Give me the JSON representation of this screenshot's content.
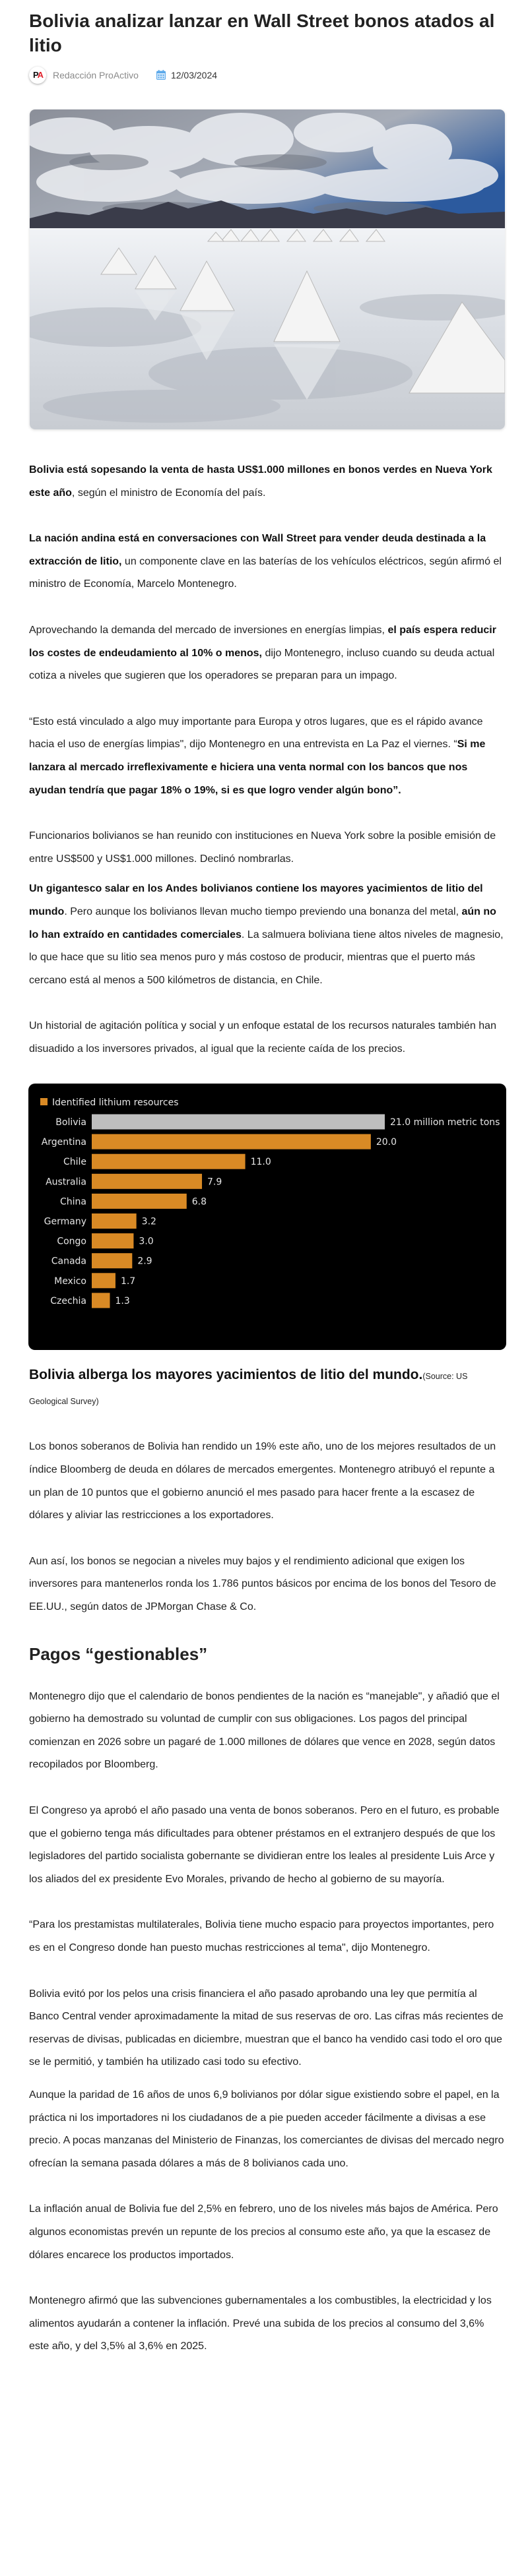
{
  "article": {
    "title": "Bolivia analizar lanzar en Wall Street bonos atados al litio",
    "author": "Redacción ProActivo",
    "author_logo": "PA",
    "date": "12/03/2024",
    "icons": {
      "author": "proactivo-logo",
      "date": "calendar-icon"
    },
    "hero_image": "salt-flat-photo"
  },
  "paragraphs_before_chart": [
    {
      "segments": [
        {
          "t": "Bolivia está sopesando la venta de hasta US$1.000 millones en bonos verdes en Nueva York este año",
          "b": true
        },
        {
          "t": ", según el ministro de Economía del país."
        }
      ]
    },
    {
      "segments": [
        {
          "t": "La nación andina está en conversaciones con Wall Street para vender deuda destinada a la extracción de litio,",
          "b": true
        },
        {
          "t": " un componente clave en las baterías de los vehículos eléctricos, según afirmó el ministro de Economía, Marcelo Montenegro."
        }
      ]
    },
    {
      "segments": [
        {
          "t": "Aprovechando la demanda del mercado de inversiones en energías limpias, "
        },
        {
          "t": "el país espera reducir los costes de endeudamiento al 10% o menos,",
          "b": true
        },
        {
          "t": " dijo Montenegro, incluso cuando su deuda actual cotiza a niveles que sugieren que los operadores se preparan para un impago."
        }
      ]
    },
    {
      "segments": [
        {
          "t": "“Esto está vinculado a algo muy importante para Europa y otros lugares, que es el rápido avance hacia el uso de energías limpias\", dijo Montenegro en una entrevista en La Paz el viernes. “"
        },
        {
          "t": "Si me lanzara al mercado irreflexivamente e hiciera una venta normal con los bancos que nos ayudan tendría que pagar 18% o 19%, si es que logro vender algún bono”.",
          "b": true
        }
      ]
    },
    {
      "segments": [
        {
          "t": "Funcionarios bolivianos se han reunido con instituciones en Nueva York sobre la posible emisión de entre US$500 y US$1.000 millones. Declinó nombrarlas."
        }
      ],
      "tight": 1
    },
    {
      "segments": [
        {
          "t": "Un gigantesco salar en los Andes bolivianos contiene los mayores yacimientos de litio del mundo",
          "b": true
        },
        {
          "t": ". Pero aunque los bolivianos llevan mucho tiempo previendo una bonanza del metal, "
        },
        {
          "t": "aún no lo han extraído en cantidades comerciales",
          "b": true
        },
        {
          "t": ". La salmuera boliviana tiene altos niveles de magnesio, lo que hace que su litio sea menos puro y más costoso de producir, mientras que el puerto más cercano está al menos a 500 kilómetros de distancia, en Chile."
        }
      ]
    },
    {
      "segments": [
        {
          "t": "Un historial de agitación política y social y un enfoque estatal de los recursos naturales también han disuadido a los inversores privados, al igual que la reciente caída de los precios."
        }
      ]
    }
  ],
  "chart_data": {
    "type": "bar",
    "orientation": "horizontal",
    "legend": "Identified lithium resources",
    "legend_placement": "top-left",
    "unit_label": "million metric tons",
    "categories": [
      "Bolivia",
      "Argentina",
      "Chile",
      "Australia",
      "China",
      "Germany",
      "Congo",
      "Canada",
      "Mexico",
      "Czechia"
    ],
    "values": [
      21.0,
      20.0,
      11.0,
      7.9,
      6.8,
      3.2,
      3.0,
      2.9,
      1.7,
      1.3
    ],
    "value_labels": [
      "21.0 million metric tons",
      "20.0",
      "11.0",
      "7.9",
      "6.8",
      "3.2",
      "3.0",
      "2.9",
      "1.7",
      "1.3"
    ],
    "xlim": [
      0,
      21
    ],
    "colors": {
      "highlight": "#BEBEBE",
      "bar": "#D98A25",
      "background": "#000000",
      "text": "#E6E6E6"
    }
  },
  "caption": {
    "main": "Bolivia alberga los mayores yacimientos de litio del mundo.",
    "source": "(Source: US Geological Survey)"
  },
  "paragraphs_after_chart": [
    {
      "segments": [
        {
          "t": "Los bonos soberanos de Bolivia han rendido un 19% este año, uno de los mejores resultados de un índice Bloomberg de deuda en dólares de mercados emergentes. Montenegro atribuyó el repunte a un plan de 10 puntos que el gobierno anunció el mes pasado para hacer frente a la escasez de dólares y aliviar las restricciones a los exportadores."
        }
      ]
    },
    {
      "segments": [
        {
          "t": "Aun así, los bonos se negocian a niveles muy bajos y el rendimiento adicional que exigen los inversores para mantenerlos ronda los 1.786 puntos básicos por encima de los bonos del Tesoro de EE.UU., según datos de JPMorgan Chase & Co."
        }
      ]
    }
  ],
  "section_heading": "Pagos “gestionables”",
  "paragraphs_section": [
    {
      "segments": [
        {
          "t": "Montenegro dijo que el calendario de bonos pendientes de la nación es “manejable\", y añadió que el gobierno ha demostrado su voluntad de cumplir con sus obligaciones. Los pagos del principal comienzan en 2026 sobre un pagaré de 1.000 millones de dólares que vence en 2028, según datos recopilados por Bloomberg."
        }
      ]
    },
    {
      "segments": [
        {
          "t": "El Congreso ya aprobó el año pasado una venta de bonos soberanos. Pero en el futuro, es probable que el gobierno tenga más dificultades para obtener préstamos en el extranjero después de que los legisladores del partido socialista gobernante se dividieran entre los leales al presidente Luis Arce y los aliados del ex presidente Evo Morales, privando de hecho al gobierno de su mayoría."
        }
      ]
    },
    {
      "segments": [
        {
          "t": "“Para los prestamistas multilaterales, Bolivia tiene mucho espacio para proyectos importantes, pero es en el Congreso donde han puesto muchas restricciones al tema\", dijo Montenegro."
        }
      ]
    },
    {
      "segments": [
        {
          "t": "Bolivia evitó por los pelos una crisis financiera el año pasado aprobando una ley que permitía al Banco Central vender aproximadamente la mitad de sus reservas de oro. Las cifras más recientes de reservas de divisas, publicadas en diciembre, muestran que el banco ha vendido casi todo el oro que se le permitió, y también ha utilizado casi todo su efectivo."
        }
      ],
      "tight": 2
    },
    {
      "segments": [
        {
          "t": "Aunque la paridad de 16 años de unos 6,9 bolivianos por dólar sigue existiendo sobre el papel, en la práctica ni los importadores ni los ciudadanos de a pie pueden acceder fácilmente a divisas a ese precio. A pocas manzanas del Ministerio de Finanzas, los comerciantes de divisas del mercado negro ofrecían la semana pasada dólares a más de 8 bolivianos cada uno."
        }
      ]
    },
    {
      "segments": [
        {
          "t": "La inflación anual de Bolivia fue del 2,5% en febrero, uno de los niveles más bajos de América. Pero algunos economistas prevén un repunte de los precios al consumo este año, ya que la escasez de dólares encarece los productos importados."
        }
      ]
    },
    {
      "segments": [
        {
          "t": "Montenegro afirmó que las subvenciones gubernamentales a los combustibles, la electricidad y los alimentos ayudarán a contener la inflación. Prevé una subida de los precios al consumo del 3,6% este año, y del 3,5% al 3,6% en 2025."
        }
      ]
    }
  ]
}
